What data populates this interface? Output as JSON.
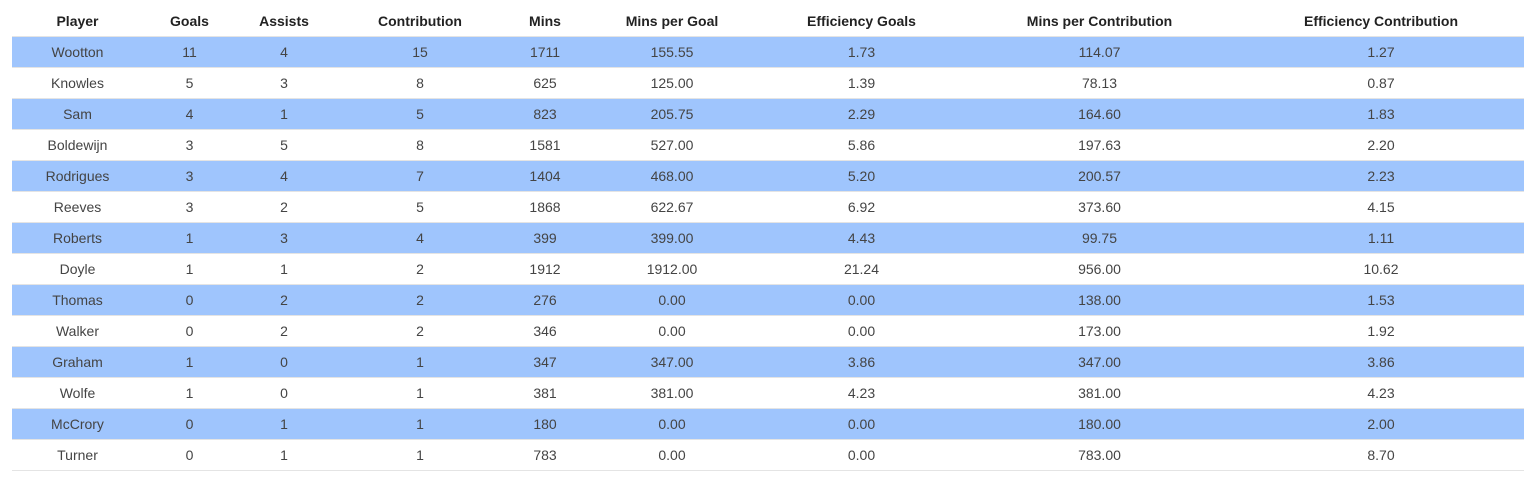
{
  "colors": {
    "stripe": "#9fc5fd",
    "plain": "#ffffff",
    "header_text": "#222222",
    "cell_text": "#444444"
  },
  "chart_data": {
    "type": "table",
    "columns": [
      "Player",
      "Goals",
      "Assists",
      "Contribution",
      "Mins",
      "Mins per Goal",
      "Efficiency Goals",
      "Mins per Contribution",
      "Efficiency Contribution"
    ],
    "rows": [
      [
        "Wootton",
        "11",
        "4",
        "15",
        "1711",
        "155.55",
        "1.73",
        "114.07",
        "1.27"
      ],
      [
        "Knowles",
        "5",
        "3",
        "8",
        "625",
        "125.00",
        "1.39",
        "78.13",
        "0.87"
      ],
      [
        "Sam",
        "4",
        "1",
        "5",
        "823",
        "205.75",
        "2.29",
        "164.60",
        "1.83"
      ],
      [
        "Boldewijn",
        "3",
        "5",
        "8",
        "1581",
        "527.00",
        "5.86",
        "197.63",
        "2.20"
      ],
      [
        "Rodrigues",
        "3",
        "4",
        "7",
        "1404",
        "468.00",
        "5.20",
        "200.57",
        "2.23"
      ],
      [
        "Reeves",
        "3",
        "2",
        "5",
        "1868",
        "622.67",
        "6.92",
        "373.60",
        "4.15"
      ],
      [
        "Roberts",
        "1",
        "3",
        "4",
        "399",
        "399.00",
        "4.43",
        "99.75",
        "1.11"
      ],
      [
        "Doyle",
        "1",
        "1",
        "2",
        "1912",
        "1912.00",
        "21.24",
        "956.00",
        "10.62"
      ],
      [
        "Thomas",
        "0",
        "2",
        "2",
        "276",
        "0.00",
        "0.00",
        "138.00",
        "1.53"
      ],
      [
        "Walker",
        "0",
        "2",
        "2",
        "346",
        "0.00",
        "0.00",
        "173.00",
        "1.92"
      ],
      [
        "Graham",
        "1",
        "0",
        "1",
        "347",
        "347.00",
        "3.86",
        "347.00",
        "3.86"
      ],
      [
        "Wolfe",
        "1",
        "0",
        "1",
        "381",
        "381.00",
        "4.23",
        "381.00",
        "4.23"
      ],
      [
        "McCrory",
        "0",
        "1",
        "1",
        "180",
        "0.00",
        "0.00",
        "180.00",
        "2.00"
      ],
      [
        "Turner",
        "0",
        "1",
        "1",
        "783",
        "0.00",
        "0.00",
        "783.00",
        "8.70"
      ]
    ]
  }
}
